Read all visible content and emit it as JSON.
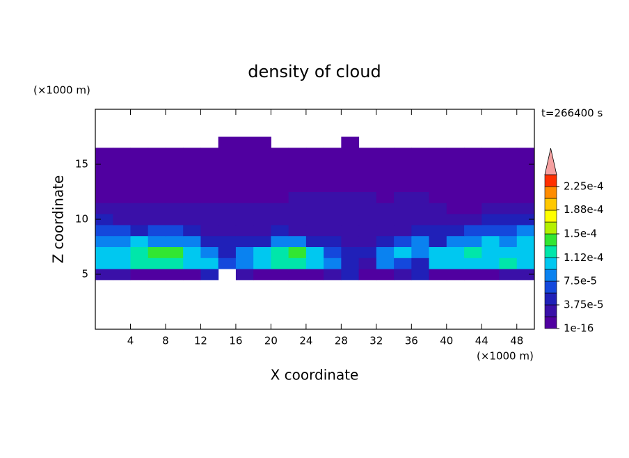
{
  "chart_data": {
    "type": "contour",
    "title": "density of cloud",
    "x_label": "X coordinate",
    "y_label": "Z coordinate",
    "x_unit": "(×1000 m)",
    "y_unit": "(×1000 m)",
    "annotation": "t=266400 s",
    "xlim": [
      0,
      50
    ],
    "ylim": [
      0,
      20
    ],
    "xticks": [
      4,
      8,
      12,
      16,
      20,
      24,
      28,
      32,
      36,
      40,
      44,
      48
    ],
    "yticks": [
      5,
      10,
      15
    ],
    "x": [
      1,
      3,
      5,
      7,
      9,
      11,
      13,
      15,
      17,
      19,
      21,
      23,
      25,
      27,
      29,
      31,
      33,
      35,
      37,
      39,
      41,
      43,
      45,
      47,
      49
    ],
    "y": [
      5,
      6,
      7,
      8,
      9,
      10,
      11,
      12,
      13,
      14,
      15,
      16,
      17
    ],
    "values": [
      [
        2.5e-05,
        2.5e-05,
        5e-06,
        5e-06,
        5e-06,
        5e-06,
        4.5e-05,
        0,
        2.5e-05,
        5e-06,
        5e-06,
        5e-06,
        5e-06,
        2.5e-05,
        4.5e-05,
        5e-06,
        5e-06,
        2.5e-05,
        4.5e-05,
        5e-06,
        5e-06,
        5e-06,
        5e-06,
        2.5e-05,
        2.5e-05
      ],
      [
        0.0001,
        0.0001,
        0.00012,
        0.00012,
        0.00012,
        0.0001,
        0.0001,
        6.5e-05,
        8.5e-05,
        0.0001,
        0.00012,
        0.00012,
        0.0001,
        8.5e-05,
        4.5e-05,
        2.5e-05,
        8.5e-05,
        6.5e-05,
        4.5e-05,
        0.0001,
        0.0001,
        0.0001,
        0.0001,
        0.00012,
        0.0001
      ],
      [
        0.0001,
        0.0001,
        0.00012,
        0.000135,
        0.000135,
        0.0001,
        8.5e-05,
        4.5e-05,
        8.5e-05,
        0.0001,
        0.00012,
        0.000135,
        0.0001,
        6.5e-05,
        4.5e-05,
        4.5e-05,
        8.5e-05,
        0.0001,
        8.5e-05,
        0.0001,
        0.0001,
        0.00012,
        0.0001,
        0.0001,
        0.0001
      ],
      [
        8.5e-05,
        8.5e-05,
        0.0001,
        8.5e-05,
        8.5e-05,
        8.5e-05,
        4.5e-05,
        4.5e-05,
        4.5e-05,
        4.5e-05,
        8.5e-05,
        8.5e-05,
        4.5e-05,
        4.5e-05,
        2.5e-05,
        2.5e-05,
        4.5e-05,
        6.5e-05,
        8.5e-05,
        4.5e-05,
        8.5e-05,
        8.5e-05,
        0.0001,
        8.5e-05,
        0.0001
      ],
      [
        6.5e-05,
        6.5e-05,
        4.5e-05,
        6.5e-05,
        6.5e-05,
        4.5e-05,
        2.5e-05,
        2.5e-05,
        2.5e-05,
        2.5e-05,
        4.5e-05,
        2.5e-05,
        2.5e-05,
        2.5e-05,
        2.5e-05,
        2.5e-05,
        2.5e-05,
        2.5e-05,
        4.5e-05,
        4.5e-05,
        4.5e-05,
        6.5e-05,
        6.5e-05,
        6.5e-05,
        8.5e-05
      ],
      [
        4.5e-05,
        2.5e-05,
        2.5e-05,
        2.5e-05,
        2.5e-05,
        2.5e-05,
        2.5e-05,
        2.5e-05,
        2.5e-05,
        2.5e-05,
        2.5e-05,
        2.5e-05,
        2.5e-05,
        2.5e-05,
        2.5e-05,
        2.5e-05,
        2.5e-05,
        2.5e-05,
        2.5e-05,
        2.5e-05,
        2.5e-05,
        2.5e-05,
        4.5e-05,
        4.5e-05,
        4.5e-05
      ],
      [
        2.5e-05,
        2.5e-05,
        2.5e-05,
        2.5e-05,
        2.5e-05,
        2.5e-05,
        2.5e-05,
        2.5e-05,
        2.5e-05,
        2.5e-05,
        2.5e-05,
        2.5e-05,
        2.5e-05,
        2.5e-05,
        2.5e-05,
        2.5e-05,
        2.5e-05,
        2.5e-05,
        2.5e-05,
        2.5e-05,
        5e-06,
        5e-06,
        2.5e-05,
        2.5e-05,
        2.5e-05
      ],
      [
        5e-06,
        5e-06,
        5e-06,
        5e-06,
        5e-06,
        5e-06,
        5e-06,
        5e-06,
        5e-06,
        5e-06,
        5e-06,
        2.5e-05,
        2.5e-05,
        2.5e-05,
        2.5e-05,
        2.5e-05,
        5e-06,
        2.5e-05,
        2.5e-05,
        5e-06,
        5e-06,
        5e-06,
        5e-06,
        5e-06,
        5e-06
      ],
      [
        5e-06,
        5e-06,
        5e-06,
        5e-06,
        5e-06,
        5e-06,
        5e-06,
        5e-06,
        5e-06,
        5e-06,
        5e-06,
        5e-06,
        5e-06,
        5e-06,
        5e-06,
        5e-06,
        5e-06,
        5e-06,
        5e-06,
        5e-06,
        5e-06,
        5e-06,
        5e-06,
        5e-06,
        5e-06
      ],
      [
        5e-06,
        5e-06,
        5e-06,
        5e-06,
        5e-06,
        5e-06,
        5e-06,
        5e-06,
        5e-06,
        5e-06,
        5e-06,
        5e-06,
        5e-06,
        5e-06,
        5e-06,
        5e-06,
        5e-06,
        5e-06,
        5e-06,
        5e-06,
        5e-06,
        5e-06,
        5e-06,
        5e-06,
        5e-06
      ],
      [
        5e-06,
        5e-06,
        5e-06,
        5e-06,
        5e-06,
        5e-06,
        5e-06,
        5e-06,
        5e-06,
        5e-06,
        5e-06,
        5e-06,
        5e-06,
        5e-06,
        5e-06,
        5e-06,
        5e-06,
        5e-06,
        5e-06,
        5e-06,
        5e-06,
        5e-06,
        5e-06,
        5e-06,
        5e-06
      ],
      [
        5e-06,
        5e-06,
        5e-06,
        5e-06,
        5e-06,
        5e-06,
        5e-06,
        5e-06,
        5e-06,
        5e-06,
        5e-06,
        5e-06,
        5e-06,
        5e-06,
        5e-06,
        5e-06,
        5e-06,
        5e-06,
        5e-06,
        5e-06,
        5e-06,
        5e-06,
        5e-06,
        5e-06,
        5e-06
      ],
      [
        0,
        0,
        0,
        0,
        0,
        0,
        0,
        5e-06,
        5e-06,
        5e-06,
        0,
        0,
        0,
        0,
        5e-06,
        0,
        0,
        0,
        0,
        0,
        0,
        0,
        0,
        0,
        0
      ]
    ],
    "clim": [
      1e-16,
      0.00024375
    ],
    "colors": [
      "#5000a0",
      "#3a10a8",
      "#2020b8",
      "#1448dc",
      "#0a82f0",
      "#00c8f0",
      "#00e6aa",
      "#32e632",
      "#b4f000",
      "#ffff00",
      "#ffc800",
      "#ff8c00",
      "#ff3000"
    ],
    "extend_color": "#f5a0a0",
    "cticks": [
      {
        "value": 1e-16,
        "label": "1e-16"
      },
      {
        "value": 3.75e-05,
        "label": "3.75e-5"
      },
      {
        "value": 7.5e-05,
        "label": "7.5e-5"
      },
      {
        "value": 0.000112,
        "label": "1.12e-4"
      },
      {
        "value": 0.00015,
        "label": "1.5e-4"
      },
      {
        "value": 0.000188,
        "label": "1.88e-4"
      },
      {
        "value": 0.000225,
        "label": "2.25e-4"
      }
    ]
  }
}
